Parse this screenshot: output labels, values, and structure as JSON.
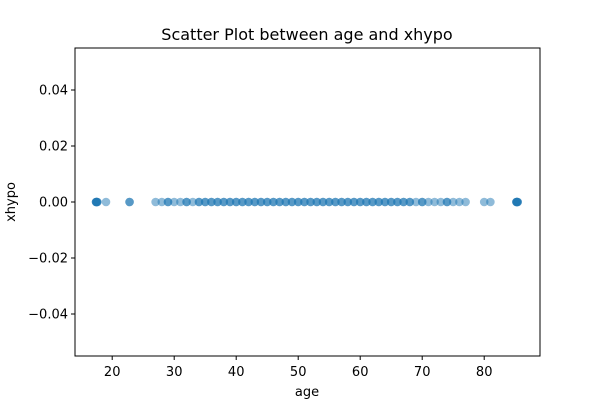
{
  "chart_data": {
    "type": "scatter",
    "title": "Scatter Plot between age and xhypo",
    "xlabel": "age",
    "ylabel": "xhypo",
    "xlim": [
      14.0,
      89.0
    ],
    "ylim": [
      -0.055,
      0.055
    ],
    "x_ticks": [
      {
        "value": 20,
        "label": "20"
      },
      {
        "value": 30,
        "label": "30"
      },
      {
        "value": 40,
        "label": "40"
      },
      {
        "value": 50,
        "label": "50"
      },
      {
        "value": 60,
        "label": "60"
      },
      {
        "value": 70,
        "label": "70"
      },
      {
        "value": 80,
        "label": "80"
      }
    ],
    "y_ticks": [
      {
        "value": 0.04,
        "label": "0.04"
      },
      {
        "value": 0.02,
        "label": "0.02"
      },
      {
        "value": 0.0,
        "label": "0.00"
      },
      {
        "value": -0.02,
        "label": "−0.02"
      },
      {
        "value": -0.04,
        "label": "−0.04"
      }
    ],
    "grid": false,
    "marker_color": "#1f77b4",
    "marker_alpha": 0.5,
    "series": [
      {
        "x": [
          17.4,
          17.4,
          17.4,
          17.5,
          17.5,
          17.6,
          17.6,
          19.0,
          22.8,
          22.8,
          27.0,
          28.0,
          29.0,
          29.0,
          30.0,
          31.0,
          32.0,
          32.0,
          33.0,
          34.0,
          34.0,
          35.0,
          35.0,
          36.0,
          36.0,
          37.0,
          37.0,
          38.0,
          38.0,
          39.0,
          39.0,
          40.0,
          40.0,
          41.0,
          41.0,
          42.0,
          42.0,
          43.0,
          43.0,
          44.0,
          44.0,
          45.0,
          45.0,
          46.0,
          46.0,
          47.0,
          47.0,
          48.0,
          48.0,
          49.0,
          49.0,
          50.0,
          50.0,
          51.0,
          51.0,
          52.0,
          52.0,
          53.0,
          53.0,
          54.0,
          54.0,
          55.0,
          55.0,
          56.0,
          56.0,
          57.0,
          57.0,
          58.0,
          58.0,
          59.0,
          59.0,
          60.0,
          60.0,
          61.0,
          61.0,
          62.0,
          62.0,
          63.0,
          63.0,
          64.0,
          64.0,
          65.0,
          65.0,
          66.0,
          66.0,
          67.0,
          67.0,
          68.0,
          68.0,
          69.0,
          70.0,
          70.0,
          71.0,
          72.0,
          73.0,
          74.0,
          74.0,
          75.0,
          76.0,
          77.0,
          80.0,
          81.0,
          85.2,
          85.2,
          85.2,
          85.3,
          85.3,
          85.4,
          85.4
        ],
        "y": [
          0,
          0,
          0,
          0,
          0,
          0,
          0,
          0,
          0,
          0,
          0,
          0,
          0,
          0,
          0,
          0,
          0,
          0,
          0,
          0,
          0,
          0,
          0,
          0,
          0,
          0,
          0,
          0,
          0,
          0,
          0,
          0,
          0,
          0,
          0,
          0,
          0,
          0,
          0,
          0,
          0,
          0,
          0,
          0,
          0,
          0,
          0,
          0,
          0,
          0,
          0,
          0,
          0,
          0,
          0,
          0,
          0,
          0,
          0,
          0,
          0,
          0,
          0,
          0,
          0,
          0,
          0,
          0,
          0,
          0,
          0,
          0,
          0,
          0,
          0,
          0,
          0,
          0,
          0,
          0,
          0,
          0,
          0,
          0,
          0,
          0,
          0,
          0,
          0,
          0,
          0,
          0,
          0,
          0,
          0,
          0,
          0,
          0,
          0,
          0,
          0,
          0,
          0,
          0,
          0,
          0,
          0,
          0,
          0
        ]
      }
    ]
  }
}
